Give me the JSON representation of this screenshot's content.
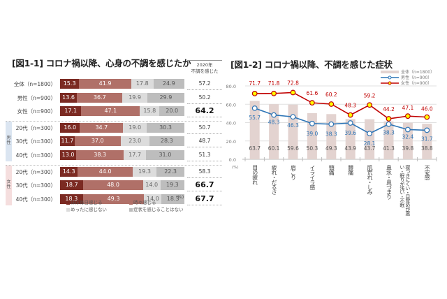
{
  "chart_data": [
    {
      "type": "bar",
      "orientation": "horizontal-stacked-100",
      "title": "[図1-1] コロナ禍以降、心身の不調を感じたか",
      "unit_label": "(%)",
      "summary_header": "2020年\n不調を感じた",
      "legend_placement": "bottom",
      "categories": [
        "全体（n=1800）",
        "男性（n=900）",
        "女性（n=900）",
        "20代（n=300）",
        "30代（n=300）",
        "40代（n=300）",
        "20代（n=300）",
        "30代（n=300）",
        "40代（n=300）"
      ],
      "groups": [
        {
          "label": "男性",
          "rows": [
            3,
            4,
            5
          ],
          "color": "#dbe5f1"
        },
        {
          "label": "女性",
          "rows": [
            6,
            7,
            8
          ],
          "color": "#f5dede"
        }
      ],
      "series": [
        {
          "name": "ほぼ毎日感じる",
          "color": "#7b2a22",
          "values": [
            15.3,
            13.6,
            17.1,
            16.0,
            11.7,
            13.0,
            14.3,
            18.7,
            18.3
          ]
        },
        {
          "name": "時々感じる",
          "color": "#b07068",
          "values": [
            41.9,
            36.7,
            47.1,
            34.7,
            37.0,
            38.3,
            44.0,
            48.0,
            49.3
          ]
        },
        {
          "name": "めったに感じない",
          "color": "#dcdcdc",
          "values": [
            17.8,
            19.9,
            15.8,
            19.0,
            23.0,
            17.7,
            19.3,
            14.0,
            14.0
          ]
        },
        {
          "name": "症状を感じることはない",
          "color": "#bdbdbd",
          "values": [
            24.9,
            29.9,
            20.0,
            30.3,
            28.3,
            31.0,
            22.3,
            19.3,
            18.3
          ]
        }
      ],
      "totals": [
        57.2,
        50.2,
        64.2,
        50.7,
        48.7,
        51.3,
        58.3,
        66.7,
        67.7
      ],
      "totals_bold": [
        false,
        false,
        true,
        false,
        false,
        false,
        false,
        true,
        true
      ]
    },
    {
      "type": "bar+line",
      "title": "[図1-2] コロナ禍以降、不調を感じた症状",
      "ylabel": "(%)",
      "ylim": [
        0,
        80
      ],
      "yticks": [
        "0.0",
        "20.0",
        "40.0",
        "60.0",
        "80.0"
      ],
      "grid": true,
      "legend_placement": "top-right",
      "categories": [
        "目の疲れ",
        "疲れ・だるさ",
        "肩こり",
        "イライラ感",
        "頭痛",
        "腰痛",
        "肌荒れ・しみ",
        "鼻水・鼻づまり",
        "寝つきにくい・目覚めが悪い・眠りが浅い・不眠",
        "不安感"
      ],
      "series": [
        {
          "name": "全体（n=1800）",
          "kind": "bar",
          "color": "#e3d3d0",
          "label_color": "#555555",
          "values": [
            63.7,
            60.1,
            59.6,
            50.3,
            49.3,
            43.9,
            43.7,
            41.3,
            39.8,
            38.8
          ]
        },
        {
          "name": "男性（n=900）",
          "kind": "line",
          "color": "#2e75b6",
          "marker_fill": "#ffffff",
          "label_color": "#2e75b6",
          "values": [
            55.7,
            48.3,
            46.3,
            39.0,
            38.3,
            39.6,
            28.1,
            38.3,
            32.4,
            31.7
          ]
        },
        {
          "name": "女性（n=900）",
          "kind": "line",
          "color": "#c00000",
          "marker_fill": "#ffff00",
          "label_color": "#c00000",
          "values": [
            71.7,
            71.8,
            72.8,
            61.6,
            60.2,
            48.3,
            59.2,
            44.2,
            47.1,
            46.0
          ]
        }
      ]
    }
  ]
}
